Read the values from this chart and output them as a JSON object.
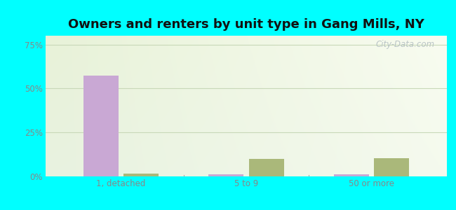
{
  "title": "Owners and renters by unit type in Gang Mills, NY",
  "categories": [
    "1, detached",
    "5 to 9",
    "50 or more"
  ],
  "owner_values": [
    57.5,
    1.0,
    1.0
  ],
  "renter_values": [
    1.5,
    10.0,
    10.5
  ],
  "owner_color": "#c9a8d4",
  "renter_color": "#aab87a",
  "yticks": [
    0,
    25,
    50,
    75
  ],
  "ytick_labels": [
    "0%",
    "25%",
    "50%",
    "75%"
  ],
  "ylim": [
    0,
    80
  ],
  "bg_color_topleft": "#e8f0d8",
  "bg_color_topright": "#f5f8ee",
  "bg_color_bottom": "#e8f0e4",
  "outer_bg": "#00ffff",
  "bar_width": 0.28,
  "watermark": "City-Data.com",
  "title_fontsize": 13,
  "axis_fontsize": 8.5,
  "legend_fontsize": 9,
  "grid_color": "#c8d8b8",
  "tick_color": "#888888"
}
